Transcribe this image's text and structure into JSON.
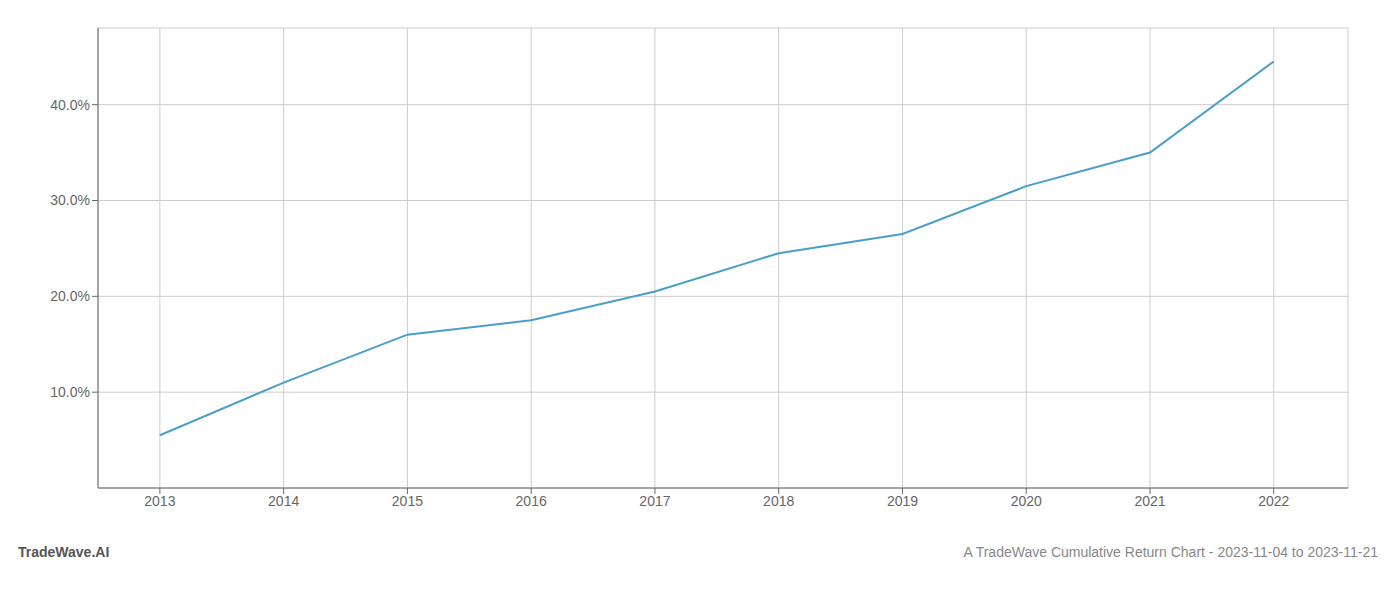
{
  "chart_data": {
    "type": "line",
    "x": [
      2013,
      2014,
      2015,
      2016,
      2017,
      2018,
      2019,
      2020,
      2021,
      2022
    ],
    "values": [
      5.5,
      11.0,
      16.0,
      17.5,
      20.5,
      24.5,
      26.5,
      31.5,
      35.0,
      44.5
    ],
    "color": "#4a9fc8",
    "xlim": [
      2012.5,
      2022.6
    ],
    "ylim": [
      0,
      48
    ],
    "xticks": [
      2013,
      2014,
      2015,
      2016,
      2017,
      2018,
      2019,
      2020,
      2021,
      2022
    ],
    "yticks": [
      {
        "value": 10.0,
        "label": "10.0%"
      },
      {
        "value": 20.0,
        "label": "20.0%"
      },
      {
        "value": 30.0,
        "label": "30.0%"
      },
      {
        "value": 40.0,
        "label": "40.0%"
      }
    ],
    "grid": true,
    "annotations": [
      "TradeWave.AI",
      "A TradeWave Cumulative Return Chart - 2023-11-04 to 2023-11-21"
    ]
  }
}
